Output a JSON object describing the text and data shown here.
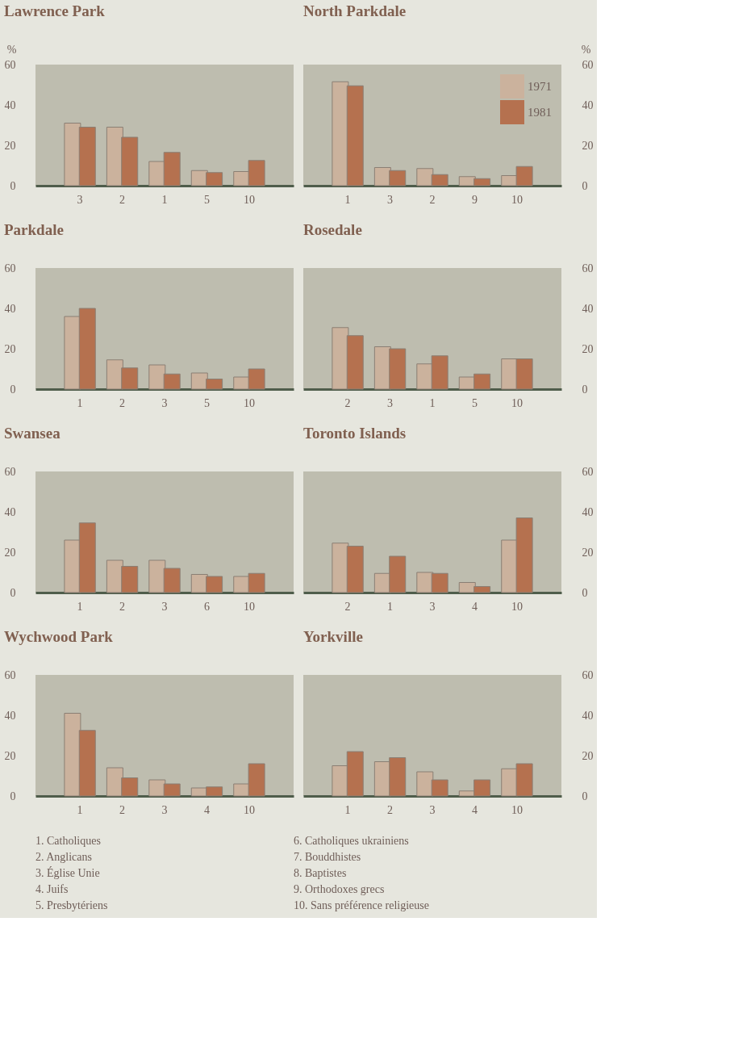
{
  "chart_data": [
    {
      "type": "bar",
      "title": "Lawrence Park",
      "ylabel": "%",
      "categories": [
        "3",
        "2",
        "1",
        "5",
        "10"
      ],
      "ylim": [
        0,
        60
      ],
      "yticks": [
        0,
        20,
        40,
        60
      ],
      "legend": false,
      "series": [
        {
          "color": "#cbb29d",
          "values": [
            31,
            29,
            12,
            7.5,
            7
          ]
        },
        {
          "color": "#b5714f",
          "values": [
            29,
            24,
            16.5,
            6.5,
            12.5
          ]
        }
      ]
    },
    {
      "type": "bar",
      "title": "North Parkdale",
      "ylabel": "%",
      "categories": [
        "1",
        "3",
        "2",
        "9",
        "10"
      ],
      "ylim": [
        0,
        60
      ],
      "yticks": [
        0,
        20,
        40,
        60
      ],
      "legend": "top right",
      "series": [
        {
          "name": "1971",
          "color": "#cbb29d",
          "values": [
            51.5,
            9,
            8.5,
            4.5,
            5
          ]
        },
        {
          "name": "1981",
          "color": "#b5714f",
          "values": [
            49.5,
            7.5,
            5.5,
            3.5,
            9.5
          ]
        }
      ]
    },
    {
      "type": "bar",
      "title": "Parkdale",
      "categories": [
        "1",
        "2",
        "3",
        "5",
        "10"
      ],
      "ylim": [
        0,
        60
      ],
      "yticks": [
        0,
        20,
        40,
        60
      ],
      "legend": false,
      "series": [
        {
          "color": "#cbb29d",
          "values": [
            36,
            14.5,
            12,
            8,
            6
          ]
        },
        {
          "color": "#b5714f",
          "values": [
            40,
            10.5,
            7.5,
            5,
            10
          ]
        }
      ]
    },
    {
      "type": "bar",
      "title": "Rosedale",
      "categories": [
        "2",
        "3",
        "1",
        "5",
        "10"
      ],
      "ylim": [
        0,
        60
      ],
      "yticks": [
        0,
        20,
        40,
        60
      ],
      "legend": false,
      "series": [
        {
          "color": "#cbb29d",
          "values": [
            30.5,
            21,
            12.5,
            6,
            15
          ]
        },
        {
          "color": "#b5714f",
          "values": [
            26.5,
            20,
            16.5,
            7.5,
            15
          ]
        }
      ]
    },
    {
      "type": "bar",
      "title": "Swansea",
      "categories": [
        "1",
        "2",
        "3",
        "6",
        "10"
      ],
      "ylim": [
        0,
        60
      ],
      "yticks": [
        0,
        20,
        40,
        60
      ],
      "legend": false,
      "series": [
        {
          "color": "#cbb29d",
          "values": [
            26,
            16,
            16,
            9,
            8
          ]
        },
        {
          "color": "#b5714f",
          "values": [
            34.5,
            13,
            12,
            8,
            9.5
          ]
        }
      ]
    },
    {
      "type": "bar",
      "title": "Toronto Islands",
      "categories": [
        "2",
        "1",
        "3",
        "4",
        "10"
      ],
      "ylim": [
        0,
        60
      ],
      "yticks": [
        0,
        20,
        40,
        60
      ],
      "legend": false,
      "series": [
        {
          "color": "#cbb29d",
          "values": [
            24.5,
            9.5,
            10,
            5,
            26
          ]
        },
        {
          "color": "#b5714f",
          "values": [
            23,
            18,
            9.5,
            3,
            37
          ]
        }
      ]
    },
    {
      "type": "bar",
      "title": "Wychwood Park",
      "categories": [
        "1",
        "2",
        "3",
        "4",
        "10"
      ],
      "ylim": [
        0,
        60
      ],
      "yticks": [
        0,
        20,
        40,
        60
      ],
      "legend": false,
      "series": [
        {
          "color": "#cbb29d",
          "values": [
            41,
            14,
            8,
            4,
            6
          ]
        },
        {
          "color": "#b5714f",
          "values": [
            32.5,
            9,
            6,
            4.5,
            16
          ]
        }
      ]
    },
    {
      "type": "bar",
      "title": "Yorkville",
      "categories": [
        "1",
        "2",
        "3",
        "4",
        "10"
      ],
      "ylim": [
        0,
        60
      ],
      "yticks": [
        0,
        20,
        40,
        60
      ],
      "legend": false,
      "series": [
        {
          "color": "#cbb29d",
          "values": [
            15,
            17,
            12,
            2.5,
            13.5
          ]
        },
        {
          "color": "#b5714f",
          "values": [
            22,
            19,
            8,
            8,
            16
          ]
        }
      ]
    },
    {
      "type": "other",
      "annotations": [
        "1. Catholiques",
        "2. Anglicans",
        "3. Église Unie",
        "4. Juifs",
        "5. Presbytériens",
        "6. Catholiques ukrainiens",
        "7. Bouddhistes",
        "8. Baptistes",
        "9. Orthodoxes grecs",
        "10. Sans préférence religieuse"
      ]
    }
  ]
}
